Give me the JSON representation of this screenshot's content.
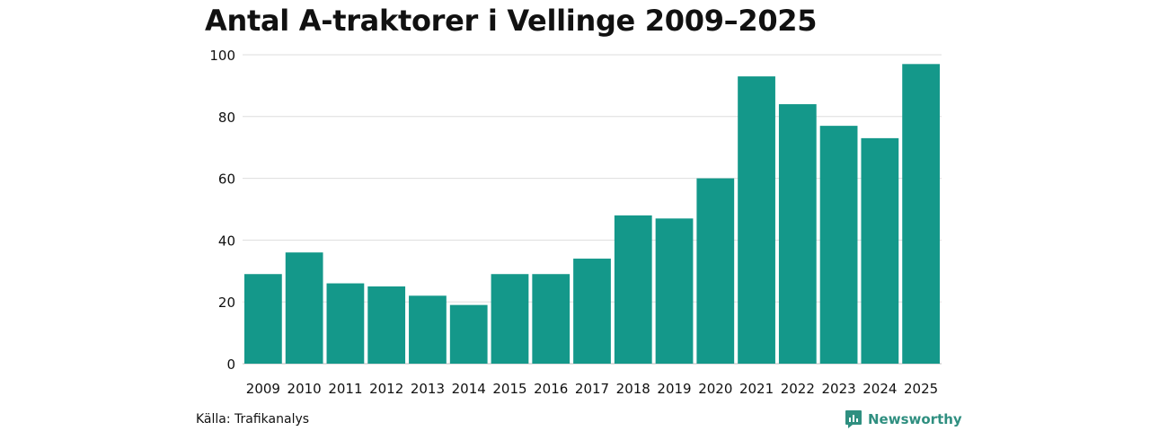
{
  "chart_data": {
    "type": "bar",
    "title": "Antal A-traktorer i Vellinge 2009–2025",
    "xlabel": "",
    "ylabel": "",
    "categories": [
      "2009",
      "2010",
      "2011",
      "2012",
      "2013",
      "2014",
      "2015",
      "2016",
      "2017",
      "2018",
      "2019",
      "2020",
      "2021",
      "2022",
      "2023",
      "2024",
      "2025"
    ],
    "values": [
      29,
      36,
      26,
      25,
      22,
      19,
      29,
      29,
      34,
      48,
      47,
      60,
      93,
      84,
      77,
      73,
      97
    ],
    "ylim": [
      0,
      100
    ],
    "yticks": [
      "0",
      "20",
      "40",
      "60",
      "80",
      "100"
    ],
    "grid": true,
    "bar_color": "#14988a"
  },
  "source": "Källa: Trafikanalys",
  "brand": {
    "name": "Newsworthy",
    "icon": "newsworthy-logo-icon",
    "color": "#2f8f80"
  }
}
